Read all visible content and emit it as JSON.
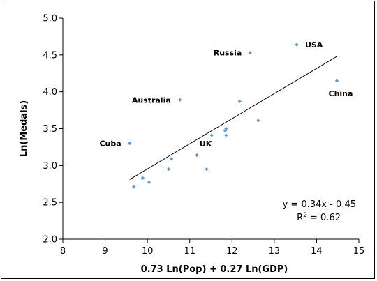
{
  "chart_data": {
    "type": "scatter",
    "xlabel": "0.73 Ln(Pop) + 0.27 Ln(GDP)",
    "ylabel": "Ln(Medals)",
    "xlim": [
      8,
      15
    ],
    "ylim": [
      2.0,
      5.0
    ],
    "x_ticks": [
      "8",
      "9",
      "10",
      "11",
      "12",
      "13",
      "14",
      "15"
    ],
    "y_ticks": [
      "2.0",
      "2.5",
      "3.0",
      "3.5",
      "4.0",
      "4.5",
      "5.0"
    ],
    "grid": false,
    "marker_color": "#5b9bd5",
    "points": [
      {
        "x": 13.53,
        "y": 4.64,
        "label": "USA"
      },
      {
        "x": 12.43,
        "y": 4.53,
        "label": "Russia"
      },
      {
        "x": 14.48,
        "y": 4.15,
        "label": "China"
      },
      {
        "x": 10.77,
        "y": 3.89,
        "label": "Australia"
      },
      {
        "x": 9.58,
        "y": 3.3,
        "label": "Cuba"
      },
      {
        "x": 11.86,
        "y": 3.41,
        "label": "UK"
      },
      {
        "x": 12.18,
        "y": 3.87
      },
      {
        "x": 12.62,
        "y": 3.61
      },
      {
        "x": 11.52,
        "y": 3.41
      },
      {
        "x": 11.84,
        "y": 3.47
      },
      {
        "x": 11.86,
        "y": 3.5
      },
      {
        "x": 11.17,
        "y": 3.14
      },
      {
        "x": 10.57,
        "y": 3.09
      },
      {
        "x": 10.5,
        "y": 2.95
      },
      {
        "x": 11.4,
        "y": 2.95
      },
      {
        "x": 9.89,
        "y": 2.83
      },
      {
        "x": 10.04,
        "y": 2.77
      },
      {
        "x": 9.68,
        "y": 2.71
      }
    ],
    "trendline": {
      "x": [
        9.58,
        14.48
      ],
      "y": [
        2.81,
        4.48
      ]
    },
    "equation": "y = 0.34x - 0.45",
    "r2_prefix": "R",
    "r2_sup": "2",
    "r2_value": " = 0.62"
  }
}
